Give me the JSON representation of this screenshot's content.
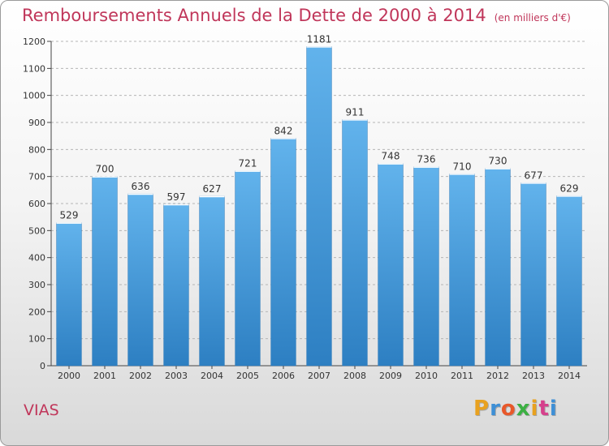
{
  "header": {
    "title": "Remboursements Annuels de la Dette de 2000 à 2014",
    "unit": "(en milliers d'€)"
  },
  "footer": {
    "commune": "VIAS",
    "logo_text": "Proxiti",
    "logo_colors": [
      "#e8a11f",
      "#3d8fd6",
      "#e8582a",
      "#3cb043",
      "#e8a11f",
      "#d6408c",
      "#3d8fd6"
    ]
  },
  "colors": {
    "title": "#c0365a",
    "bar_top": "#62b3ec",
    "bar_bottom": "#2d7fc2",
    "grid": "#b5b5b5"
  },
  "chart_data": {
    "type": "bar",
    "title": "Remboursements Annuels de la Dette de 2000 à 2014",
    "xlabel": "",
    "ylabel": "",
    "categories": [
      "2000",
      "2001",
      "2002",
      "2003",
      "2004",
      "2005",
      "2006",
      "2007",
      "2008",
      "2009",
      "2010",
      "2011",
      "2012",
      "2013",
      "2014"
    ],
    "values": [
      529,
      700,
      636,
      597,
      627,
      721,
      842,
      1181,
      911,
      748,
      736,
      710,
      730,
      677,
      629
    ],
    "ylim": [
      0,
      1200
    ],
    "yticks": [
      0,
      100,
      200,
      300,
      400,
      500,
      600,
      700,
      800,
      900,
      1000,
      1100,
      1200
    ],
    "grid": true,
    "data_labels": true
  }
}
